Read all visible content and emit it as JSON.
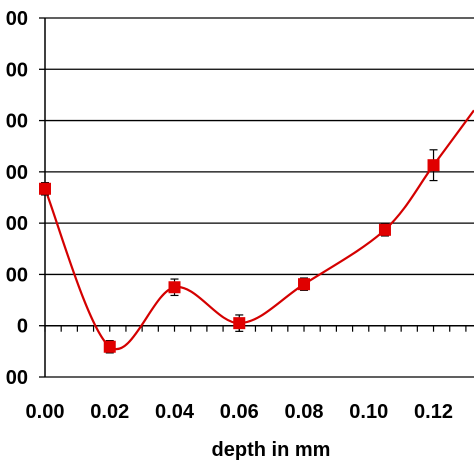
{
  "chart_data": {
    "type": "line",
    "xlabel": "depth in mm",
    "ylabel": "",
    "x_tick_labels": [
      "0.00",
      "0.02",
      "0.04",
      "0.06",
      "0.08",
      "0.10",
      "0.12"
    ],
    "x_ticks": [
      0.0,
      0.02,
      0.04,
      0.06,
      0.08,
      0.1,
      0.12
    ],
    "y_tick_labels": [
      "00",
      "00",
      "00",
      "00",
      "00",
      "00",
      "0",
      "00"
    ],
    "y_ticks": [
      600,
      500,
      400,
      300,
      200,
      100,
      0,
      -100
    ],
    "xlim": [
      0.0,
      0.1325
    ],
    "ylim": [
      -100,
      600
    ],
    "grid": "horizontal",
    "series": [
      {
        "marker": "square",
        "color": "#e00000",
        "line_color": "#d40000",
        "points": [
          {
            "x": 0.0,
            "y": 267,
            "err": 12
          },
          {
            "x": 0.02,
            "y": -41,
            "err": 12
          },
          {
            "x": 0.04,
            "y": 75,
            "err": 16
          },
          {
            "x": 0.06,
            "y": 5,
            "err": 16
          },
          {
            "x": 0.08,
            "y": 81,
            "err": 12
          },
          {
            "x": 0.105,
            "y": 187,
            "err": 12
          },
          {
            "x": 0.12,
            "y": 313,
            "err": 30
          }
        ],
        "curve_end": {
          "x": 0.1325,
          "y": 420
        }
      }
    ]
  }
}
